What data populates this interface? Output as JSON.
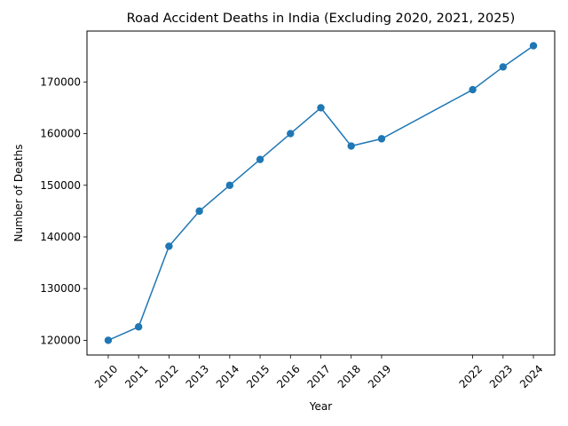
{
  "chart_data": {
    "type": "line",
    "title": "Road Accident Deaths in India (Excluding 2020, 2021, 2025)",
    "xlabel": "Year",
    "ylabel": "Number of Deaths",
    "x": [
      2010,
      2011,
      2012,
      2013,
      2014,
      2015,
      2016,
      2017,
      2018,
      2019,
      2022,
      2023,
      2024
    ],
    "series": [
      {
        "values": [
          120000,
          122600,
          138200,
          145000,
          150000,
          155000,
          160000,
          165000,
          157600,
          159000,
          168500,
          172900,
          177000
        ],
        "color": "#1f77b4",
        "marker": "circle"
      }
    ],
    "xticks": [
      "2010",
      "2011",
      "2012",
      "2013",
      "2014",
      "2015",
      "2016",
      "2017",
      "2018",
      "2019",
      "2022",
      "2023",
      "2024"
    ],
    "yticks": [
      "120000",
      "130000",
      "140000",
      "150000",
      "160000",
      "170000"
    ],
    "xlim": [
      2009.3,
      2024.7
    ],
    "ylim": [
      117150,
      179850
    ],
    "grid": false,
    "legend": "none"
  }
}
